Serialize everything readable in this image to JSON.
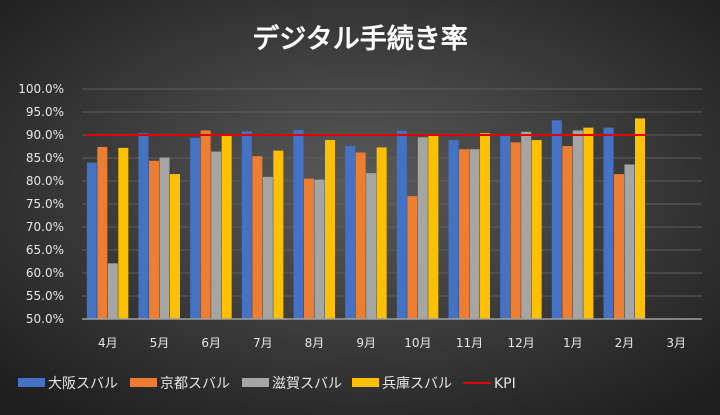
{
  "chart_data": {
    "type": "bar",
    "title": "デジタル手続き率",
    "xlabel": "",
    "ylabel": "",
    "ylim": [
      0.5,
      1.0
    ],
    "y_ticks": [
      "50.0%",
      "55.0%",
      "60.0%",
      "65.0%",
      "70.0%",
      "75.0%",
      "80.0%",
      "85.0%",
      "90.0%",
      "95.0%",
      "100.0%"
    ],
    "grid": true,
    "legend": "bottom",
    "categories": [
      "4月",
      "5月",
      "6月",
      "7月",
      "8月",
      "9月",
      "10月",
      "11月",
      "12月",
      "1月",
      "2月",
      "3月"
    ],
    "series": [
      {
        "name": "大阪スバル",
        "color": "#4472c4",
        "values": [
          0.84,
          0.904,
          0.894,
          0.908,
          0.911,
          0.876,
          0.909,
          0.889,
          0.898,
          0.932,
          0.916,
          null
        ]
      },
      {
        "name": "京都スバル",
        "color": "#ed7d31",
        "values": [
          0.874,
          0.844,
          0.91,
          0.854,
          0.805,
          0.862,
          0.767,
          0.869,
          0.884,
          0.876,
          0.815,
          null
        ]
      },
      {
        "name": "滋賀スバル",
        "color": "#a5a5a5",
        "values": [
          0.621,
          0.851,
          0.864,
          0.809,
          0.803,
          0.817,
          0.895,
          0.869,
          0.907,
          0.91,
          0.836,
          null
        ]
      },
      {
        "name": "兵庫スバル",
        "color": "#ffc000",
        "values": [
          0.872,
          0.815,
          0.9,
          0.866,
          0.889,
          0.873,
          0.898,
          0.904,
          0.889,
          0.916,
          0.936,
          null
        ]
      }
    ],
    "kpi": {
      "name": "KPI",
      "color": "#e00000",
      "value": 0.9
    }
  }
}
